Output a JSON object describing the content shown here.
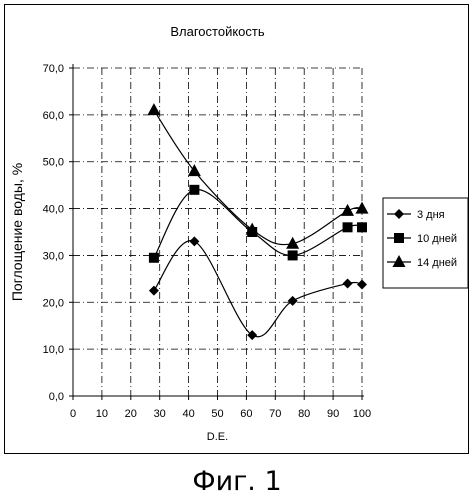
{
  "chart_data": {
    "type": "line",
    "title": "Влагостойкость",
    "xlabel": "D.E.",
    "ylabel": "Поглощение воды, %",
    "xlim": [
      0,
      100
    ],
    "ylim": [
      0,
      70
    ],
    "x_ticks": [
      "0",
      "10",
      "20",
      "30",
      "40",
      "50",
      "60",
      "70",
      "80",
      "90",
      "100"
    ],
    "y_ticks": [
      "0,0",
      "10,0",
      "20,0",
      "30,0",
      "40,0",
      "50,0",
      "60,0",
      "70,0"
    ],
    "legend_position": "right",
    "series": [
      {
        "name": "3 дня",
        "marker": "diamond",
        "x": [
          28,
          42,
          62,
          76,
          95,
          100
        ],
        "y": [
          22.5,
          33,
          13,
          20.3,
          24,
          23.8
        ]
      },
      {
        "name": "10 дней",
        "marker": "square",
        "x": [
          28,
          42,
          62,
          76,
          95,
          100
        ],
        "y": [
          29.5,
          44,
          35,
          30,
          36,
          36
        ]
      },
      {
        "name": "14 дней",
        "marker": "triangle",
        "x": [
          28,
          42,
          62,
          76,
          95,
          100
        ],
        "y": [
          61,
          48,
          35.5,
          32.5,
          39.5,
          40
        ]
      }
    ]
  },
  "caption": "Фиг. 1"
}
